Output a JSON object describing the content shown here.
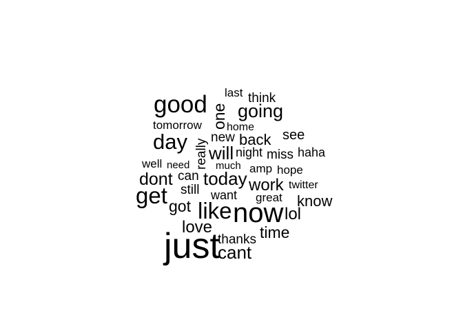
{
  "wordcloud": {
    "words": {
      "just": "just",
      "now": "now",
      "good": "good",
      "get": "get",
      "like": "like",
      "day": "day",
      "going": "going",
      "love": "love",
      "dont": "dont",
      "today": "today",
      "work": "work",
      "one": "one",
      "will": "will",
      "cant": "cant",
      "time": "time",
      "got": "got",
      "lol": "lol",
      "back": "back",
      "know": "know",
      "see": "see",
      "really": "really",
      "new": "new",
      "think": "think",
      "tomorrow": "tomorrow",
      "last": "last",
      "home": "home",
      "night": "night",
      "miss": "miss",
      "haha": "haha",
      "well": "well",
      "need": "need",
      "much": "much",
      "amp": "amp",
      "hope": "hope",
      "can": "can",
      "still": "still",
      "twitter": "twitter",
      "want": "want",
      "great": "great",
      "thanks": "thanks"
    }
  }
}
